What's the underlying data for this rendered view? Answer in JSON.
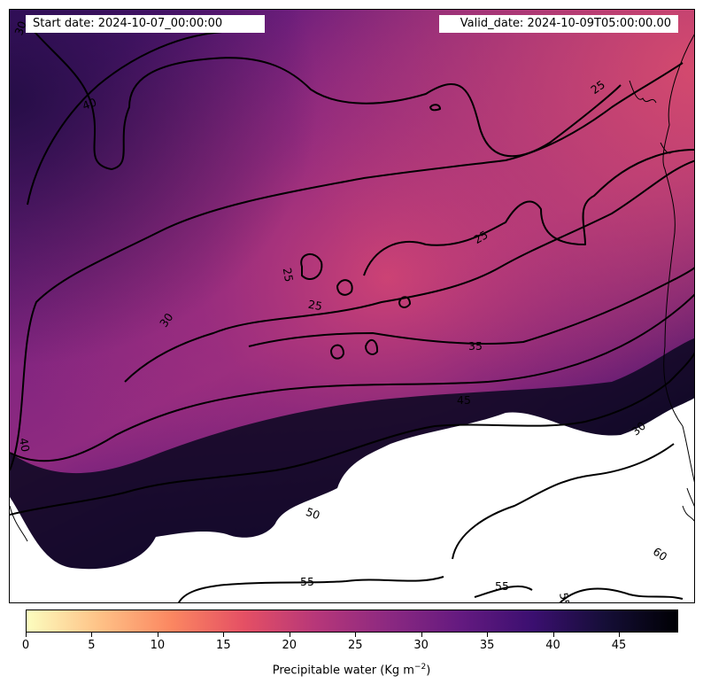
{
  "header": {
    "start_date": "Start date: 2024-10-07_00:00:00",
    "valid_date": "Valid_date: 2024-10-09T05:00:00.00"
  },
  "colormap": "magma_r",
  "colorbar": {
    "ticks": [
      "0",
      "5",
      "10",
      "15",
      "20",
      "25",
      "30",
      "35",
      "40",
      "45"
    ],
    "tick_values": [
      0,
      5,
      10,
      15,
      20,
      25,
      30,
      35,
      40,
      45
    ],
    "range": [
      0,
      49.5
    ],
    "title": "Precipitable water (Kg m",
    "title_exponent": "−2",
    "title_suffix": ")"
  },
  "contour_labels": [
    "25",
    "25",
    "25",
    "25",
    "30",
    "30",
    "30",
    "35",
    "40",
    "40",
    "45",
    "50",
    "55",
    "55",
    "55",
    "60"
  ]
}
